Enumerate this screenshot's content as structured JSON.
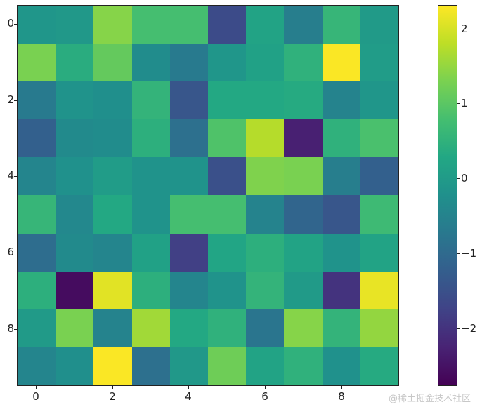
{
  "chart_data": {
    "type": "heatmap",
    "title": "",
    "xlabel": "",
    "ylabel": "",
    "colormap": "viridis",
    "rows": 10,
    "cols": 10,
    "x_ticks": [
      0,
      2,
      4,
      6,
      8
    ],
    "y_ticks": [
      0,
      2,
      4,
      6,
      8
    ],
    "colorbar": {
      "vmin": -2.77,
      "vmax": 2.32,
      "ticks": [
        2,
        1,
        0,
        -1,
        -2
      ],
      "tick_labels": [
        "2",
        "1",
        "0",
        "−1",
        "−2"
      ]
    },
    "values": [
      [
        -0.1,
        -0.05,
        1.4,
        0.8,
        0.8,
        -1.6,
        0.2,
        -0.6,
        0.6,
        0.0
      ],
      [
        1.3,
        0.4,
        1.1,
        -0.3,
        -0.7,
        -0.1,
        0.15,
        0.5,
        2.3,
        0.05
      ],
      [
        -0.7,
        -0.15,
        -0.25,
        0.55,
        -1.4,
        0.3,
        0.3,
        0.35,
        -0.5,
        -0.1
      ],
      [
        -1.2,
        -0.35,
        -0.3,
        0.45,
        -0.9,
        0.9,
        1.75,
        -2.3,
        0.5,
        0.85
      ],
      [
        -0.45,
        -0.2,
        0.05,
        -0.15,
        -0.15,
        -1.5,
        1.35,
        1.3,
        -0.6,
        -1.2
      ],
      [
        0.6,
        -0.4,
        0.3,
        -0.15,
        0.8,
        0.8,
        -0.5,
        -1.1,
        -1.4,
        0.7
      ],
      [
        -0.95,
        -0.35,
        -0.45,
        0.15,
        -1.8,
        0.25,
        0.45,
        0.2,
        -0.15,
        0.2
      ],
      [
        0.45,
        -2.6,
        2.1,
        0.45,
        -0.45,
        -0.15,
        0.55,
        0.0,
        -2.0,
        2.15
      ],
      [
        0.0,
        1.3,
        -0.5,
        1.6,
        0.3,
        0.5,
        -0.8,
        1.4,
        0.55,
        1.5
      ],
      [
        -0.45,
        -0.25,
        2.3,
        -0.9,
        -0.05,
        1.2,
        0.2,
        0.5,
        -0.2,
        0.35
      ]
    ]
  },
  "axis": {
    "x_labels": [
      "0",
      "2",
      "4",
      "6",
      "8"
    ],
    "y_labels": [
      "0",
      "2",
      "4",
      "6",
      "8"
    ]
  },
  "watermark": "@稀土掘金技术社区"
}
